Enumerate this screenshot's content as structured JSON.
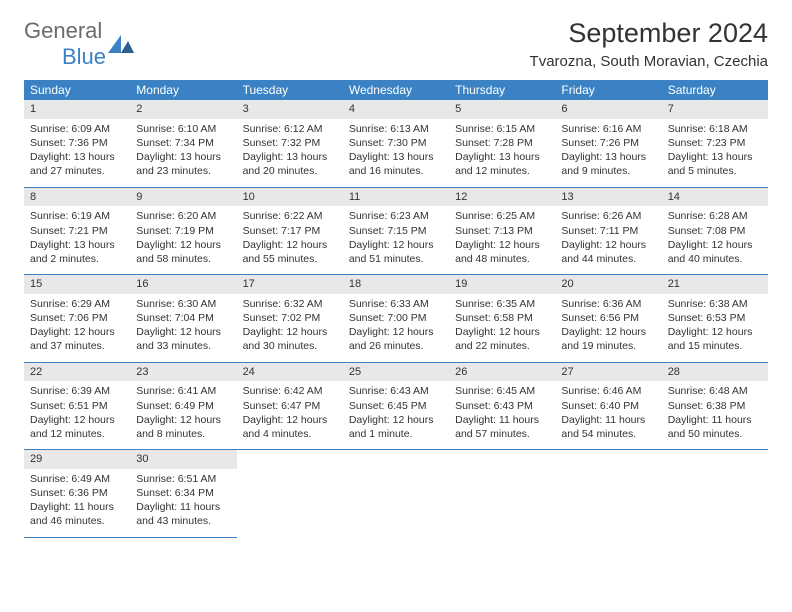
{
  "logo": {
    "text1": "General",
    "text2": "Blue"
  },
  "title": "September 2024",
  "location": "Tvarozna, South Moravian, Czechia",
  "header_bg": "#3b82c4",
  "header_fg": "#ffffff",
  "daybar_bg": "#e8e8e8",
  "text_color": "#333333",
  "border_color": "#3b82c4",
  "font_title": 27,
  "font_location": 15,
  "font_header": 12,
  "font_cell": 10.5,
  "weekdays": [
    "Sunday",
    "Monday",
    "Tuesday",
    "Wednesday",
    "Thursday",
    "Friday",
    "Saturday"
  ],
  "weeks": [
    [
      {
        "n": "1",
        "sr": "6:09 AM",
        "ss": "7:36 PM",
        "dl": "13 hours and 27 minutes."
      },
      {
        "n": "2",
        "sr": "6:10 AM",
        "ss": "7:34 PM",
        "dl": "13 hours and 23 minutes."
      },
      {
        "n": "3",
        "sr": "6:12 AM",
        "ss": "7:32 PM",
        "dl": "13 hours and 20 minutes."
      },
      {
        "n": "4",
        "sr": "6:13 AM",
        "ss": "7:30 PM",
        "dl": "13 hours and 16 minutes."
      },
      {
        "n": "5",
        "sr": "6:15 AM",
        "ss": "7:28 PM",
        "dl": "13 hours and 12 minutes."
      },
      {
        "n": "6",
        "sr": "6:16 AM",
        "ss": "7:26 PM",
        "dl": "13 hours and 9 minutes."
      },
      {
        "n": "7",
        "sr": "6:18 AM",
        "ss": "7:23 PM",
        "dl": "13 hours and 5 minutes."
      }
    ],
    [
      {
        "n": "8",
        "sr": "6:19 AM",
        "ss": "7:21 PM",
        "dl": "13 hours and 2 minutes."
      },
      {
        "n": "9",
        "sr": "6:20 AM",
        "ss": "7:19 PM",
        "dl": "12 hours and 58 minutes."
      },
      {
        "n": "10",
        "sr": "6:22 AM",
        "ss": "7:17 PM",
        "dl": "12 hours and 55 minutes."
      },
      {
        "n": "11",
        "sr": "6:23 AM",
        "ss": "7:15 PM",
        "dl": "12 hours and 51 minutes."
      },
      {
        "n": "12",
        "sr": "6:25 AM",
        "ss": "7:13 PM",
        "dl": "12 hours and 48 minutes."
      },
      {
        "n": "13",
        "sr": "6:26 AM",
        "ss": "7:11 PM",
        "dl": "12 hours and 44 minutes."
      },
      {
        "n": "14",
        "sr": "6:28 AM",
        "ss": "7:08 PM",
        "dl": "12 hours and 40 minutes."
      }
    ],
    [
      {
        "n": "15",
        "sr": "6:29 AM",
        "ss": "7:06 PM",
        "dl": "12 hours and 37 minutes."
      },
      {
        "n": "16",
        "sr": "6:30 AM",
        "ss": "7:04 PM",
        "dl": "12 hours and 33 minutes."
      },
      {
        "n": "17",
        "sr": "6:32 AM",
        "ss": "7:02 PM",
        "dl": "12 hours and 30 minutes."
      },
      {
        "n": "18",
        "sr": "6:33 AM",
        "ss": "7:00 PM",
        "dl": "12 hours and 26 minutes."
      },
      {
        "n": "19",
        "sr": "6:35 AM",
        "ss": "6:58 PM",
        "dl": "12 hours and 22 minutes."
      },
      {
        "n": "20",
        "sr": "6:36 AM",
        "ss": "6:56 PM",
        "dl": "12 hours and 19 minutes."
      },
      {
        "n": "21",
        "sr": "6:38 AM",
        "ss": "6:53 PM",
        "dl": "12 hours and 15 minutes."
      }
    ],
    [
      {
        "n": "22",
        "sr": "6:39 AM",
        "ss": "6:51 PM",
        "dl": "12 hours and 12 minutes."
      },
      {
        "n": "23",
        "sr": "6:41 AM",
        "ss": "6:49 PM",
        "dl": "12 hours and 8 minutes."
      },
      {
        "n": "24",
        "sr": "6:42 AM",
        "ss": "6:47 PM",
        "dl": "12 hours and 4 minutes."
      },
      {
        "n": "25",
        "sr": "6:43 AM",
        "ss": "6:45 PM",
        "dl": "12 hours and 1 minute."
      },
      {
        "n": "26",
        "sr": "6:45 AM",
        "ss": "6:43 PM",
        "dl": "11 hours and 57 minutes."
      },
      {
        "n": "27",
        "sr": "6:46 AM",
        "ss": "6:40 PM",
        "dl": "11 hours and 54 minutes."
      },
      {
        "n": "28",
        "sr": "6:48 AM",
        "ss": "6:38 PM",
        "dl": "11 hours and 50 minutes."
      }
    ],
    [
      {
        "n": "29",
        "sr": "6:49 AM",
        "ss": "6:36 PM",
        "dl": "11 hours and 46 minutes."
      },
      {
        "n": "30",
        "sr": "6:51 AM",
        "ss": "6:34 PM",
        "dl": "11 hours and 43 minutes."
      },
      null,
      null,
      null,
      null,
      null
    ]
  ],
  "labels": {
    "sunrise": "Sunrise: ",
    "sunset": "Sunset: ",
    "daylight": "Daylight: "
  }
}
